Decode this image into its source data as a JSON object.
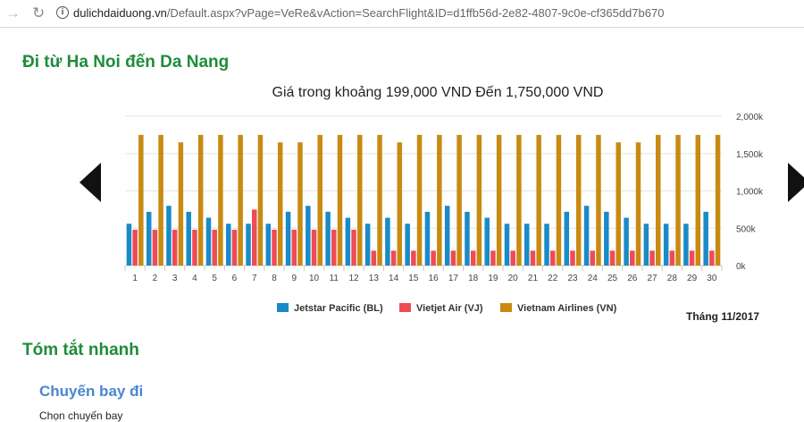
{
  "browser": {
    "url_domain": "dulichdaiduong.vn",
    "url_rest": "/Default.aspx?vPage=VeRe&vAction=SearchFlight&ID=d1ffb56d-2e82-4807-9c0e-cf365dd7b670",
    "back_icon": "arrow-left-icon",
    "reload_icon": "reload-icon",
    "info_icon": "info-icon"
  },
  "page": {
    "route_title": "Đi từ Ha Noi đến Da Nang",
    "month_label": "Tháng 11/2017",
    "summary_title": "Tóm tắt nhanh",
    "outbound_title": "Chuyến bay đi",
    "choose_label": "Chọn chuyến bay"
  },
  "chart_data": {
    "type": "bar",
    "title": "Giá trong khoảng 199,000 VND Đến 1,750,000 VND",
    "categories": [
      "1",
      "2",
      "3",
      "4",
      "5",
      "6",
      "7",
      "8",
      "9",
      "10",
      "11",
      "12",
      "13",
      "14",
      "15",
      "16",
      "17",
      "18",
      "19",
      "20",
      "21",
      "22",
      "23",
      "24",
      "25",
      "26",
      "27",
      "28",
      "29",
      "30"
    ],
    "y_ticks": [
      "0k",
      "500k",
      "1,000k",
      "1,500k",
      "2,000k"
    ],
    "ylim": [
      0,
      2000
    ],
    "y_axis_position": "right",
    "grid": true,
    "legend_position": "bottom",
    "series": [
      {
        "name": "Jetstar Pacific (BL)",
        "color": "#1a8ac8",
        "values": [
          560,
          720,
          800,
          720,
          640,
          560,
          560,
          560,
          720,
          800,
          720,
          640,
          560,
          640,
          560,
          720,
          800,
          720,
          640,
          560,
          560,
          560,
          720,
          800,
          720,
          640,
          560,
          560,
          560,
          720
        ]
      },
      {
        "name": "Vietjet Air (VJ)",
        "color": "#ef4b55",
        "values": [
          480,
          480,
          480,
          480,
          480,
          480,
          750,
          480,
          480,
          480,
          480,
          480,
          199,
          199,
          199,
          199,
          199,
          199,
          199,
          199,
          199,
          199,
          199,
          199,
          199,
          199,
          199,
          199,
          199,
          199
        ]
      },
      {
        "name": "Vietnam Airlines (VN)",
        "color": "#c98a12",
        "values": [
          1750,
          1750,
          1650,
          1750,
          1750,
          1750,
          1750,
          1650,
          1650,
          1750,
          1750,
          1750,
          1750,
          1650,
          1750,
          1750,
          1750,
          1750,
          1750,
          1750,
          1750,
          1750,
          1750,
          1750,
          1650,
          1650,
          1750,
          1750,
          1750,
          1750
        ]
      }
    ]
  }
}
